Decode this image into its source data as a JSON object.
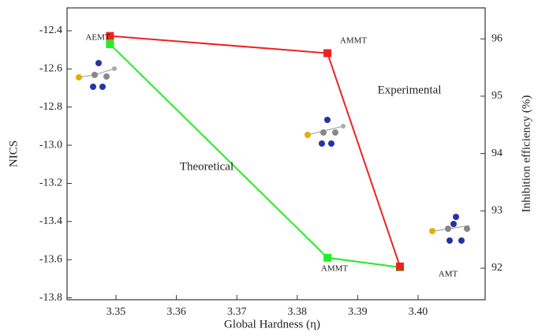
{
  "chart_data": {
    "type": "line",
    "xlabel": "Global Hardness (η)",
    "ylabel": "NICS",
    "y2label": "Inhibition efficiency (%)",
    "x": [
      3.349,
      3.385,
      3.397
    ],
    "series": [
      {
        "name": "Theoretical",
        "color": "#22ee22",
        "values": [
          -12.47,
          -13.59,
          -13.64
        ]
      },
      {
        "name": "Experimental",
        "color": "#ee2222",
        "axis": "y2",
        "values": [
          96.05,
          95.75,
          92.03
        ]
      }
    ],
    "annotations": [
      "AEMT",
      "AMMT",
      "AMMT",
      "AMT"
    ],
    "xlim": [
      3.3419,
      3.4111
    ],
    "xticks": [
      3.35,
      3.36,
      3.37,
      3.38,
      3.39,
      {
        "value": 3.4,
        "label": "3.40"
      }
    ],
    "ylim": [
      -13.81,
      -12.28
    ],
    "yticks": [
      -12.4,
      -12.6,
      -12.8,
      {
        "value": -13,
        "label": "-13.0"
      },
      -13.2,
      -13.4,
      -13.6,
      -13.8
    ],
    "y2lim": [
      91.45,
      96.54
    ],
    "y2ticks": [
      92,
      93,
      94,
      95,
      96
    ]
  }
}
